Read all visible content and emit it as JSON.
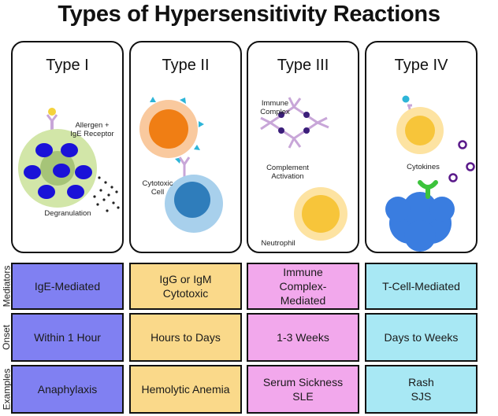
{
  "title": "Types of Hypersensitivity Reactions",
  "colors": {
    "type1": "#8080f2",
    "type2": "#fad98a",
    "type3": "#f2a8ec",
    "type4": "#a8e8f4"
  },
  "panels": [
    {
      "title": "Type I",
      "labels": {
        "allergen": "Allergen +",
        "receptor": "IgE Receptor",
        "degranulation": "Degranulation"
      }
    },
    {
      "title": "Type II",
      "labels": {
        "cytotoxic1": "Cytotoxic",
        "cytotoxic2": "Cell"
      }
    },
    {
      "title": "Type III",
      "labels": {
        "immune1": "Immune",
        "immune2": "Complex",
        "complement1": "Complement",
        "complement2": "Activation",
        "neutrophil": "Neutrophil"
      }
    },
    {
      "title": "Type IV",
      "labels": {
        "cytokines": "Cytokines"
      }
    }
  ],
  "row_labels": [
    "Mediators",
    "Onset",
    "Examples"
  ],
  "rows": [
    {
      "cells": [
        "IgE-Mediated",
        "IgG or IgM\nCytotoxic",
        "Immune\nComplex-\nMediated",
        "T-Cell-Mediated"
      ]
    },
    {
      "cells": [
        "Within 1 Hour",
        "Hours to Days",
        "1-3 Weeks",
        "Days to Weeks"
      ]
    },
    {
      "cells": [
        "Anaphylaxis",
        "Hemolytic Anemia",
        "Serum Sickness\nSLE",
        "Rash\nSJS"
      ]
    }
  ]
}
